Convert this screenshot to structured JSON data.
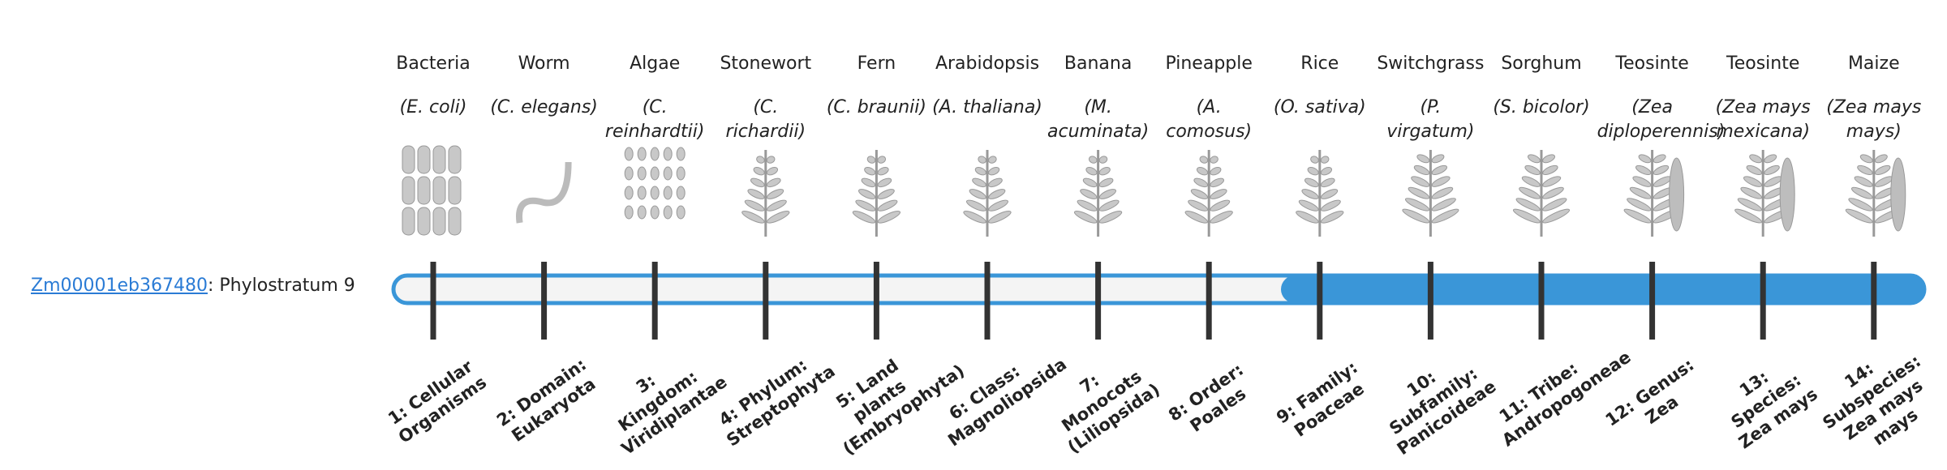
{
  "gene": {
    "id": "Zm00001eb367480",
    "text": ": Phylostratum 9",
    "stratum": 9
  },
  "organisms": [
    {
      "common": "Bacteria",
      "scientific": "(E. coli)",
      "stratum": "1: Cellular Organisms"
    },
    {
      "common": "Worm",
      "scientific": "(C. elegans)",
      "stratum": "2: Domain: Eukaryota"
    },
    {
      "common": "Algae",
      "scientific": "(C. reinhardtii)",
      "stratum": "3: Kingdom: Viridiplantae"
    },
    {
      "common": "Stonewort",
      "scientific": "(C. richardii)",
      "stratum": "4: Phylum: Streptophyta"
    },
    {
      "common": "Fern",
      "scientific": "(C. braunii)",
      "stratum": "5: Land plants (Embryophyta)"
    },
    {
      "common": "Arabidopsis",
      "scientific": "(A. thaliana)",
      "stratum": "6: Class: Magnoliopsida"
    },
    {
      "common": "Banana",
      "scientific": "(M. acuminata)",
      "stratum": "7: Monocots (Liliopsida)"
    },
    {
      "common": "Pineapple",
      "scientific": "(A. comosus)",
      "stratum": "8: Order: Poales"
    },
    {
      "common": "Rice",
      "scientific": "(O. sativa)",
      "stratum": "9: Family: Poaceae"
    },
    {
      "common": "Switchgrass",
      "scientific": "(P. virgatum)",
      "stratum": "10: Subfamily: Panicoideae"
    },
    {
      "common": "Sorghum",
      "scientific": "(S. bicolor)",
      "stratum": "11: Tribe: Andropogoneae"
    },
    {
      "common": "Teosinte",
      "scientific": "(Zea diploperennis)",
      "stratum": "12: Genus: Zea"
    },
    {
      "common": "Teosinte",
      "scientific": "(Zea mays mexicana)",
      "stratum": "13: Species: Zea mays"
    },
    {
      "common": "Maize",
      "scientific": "(Zea mays mays)",
      "stratum": "14: Subspecies: Zea mays mays"
    }
  ]
}
